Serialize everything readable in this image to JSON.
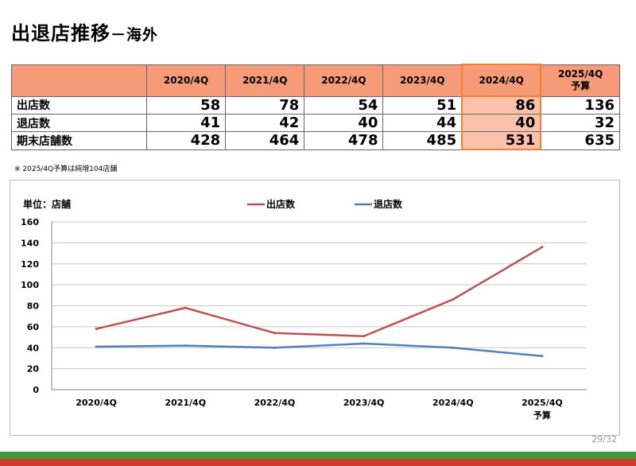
{
  "header": {
    "title": "出退店推移",
    "subtitle": "－海外"
  },
  "table": {
    "columns": [
      "2020/4Q",
      "2021/4Q",
      "2022/4Q",
      "2023/4Q",
      "2024/4Q",
      "2025/4Q\n予算"
    ],
    "rows": [
      {
        "label": "出店数",
        "values": [
          "58",
          "78",
          "54",
          "51",
          "86",
          "136"
        ]
      },
      {
        "label": "退店数",
        "values": [
          "41",
          "42",
          "40",
          "44",
          "40",
          "32"
        ]
      },
      {
        "label": "期末店舗数",
        "values": [
          "428",
          "464",
          "478",
          "485",
          "531",
          "635"
        ]
      }
    ],
    "highlight_color": "#fcc1aa",
    "header_color": "#f79a78"
  },
  "note": "※ 2025/4Q予算は純増104店舗",
  "chart_data": {
    "type": "line",
    "categories": [
      "2020/4Q",
      "2021/4Q",
      "2022/4Q",
      "2023/4Q",
      "2024/4Q",
      "2025/4Q\n予算"
    ],
    "series": [
      {
        "name": "出店数",
        "values": [
          58,
          78,
          54,
          51,
          86,
          136
        ],
        "color": "#c0504d"
      },
      {
        "name": "退店数",
        "values": [
          41,
          42,
          40,
          44,
          40,
          32
        ],
        "color": "#4f81bd"
      }
    ],
    "ylabel": "単位：店舗",
    "ylim": [
      0,
      160
    ],
    "yticks": [
      0,
      20,
      40,
      60,
      80,
      100,
      120,
      140,
      160
    ],
    "grid": true,
    "legend": "top-center"
  },
  "page": {
    "number": "29/32"
  },
  "footer_colors": {
    "green": "#3d9a3d",
    "red": "#d23a2c"
  }
}
